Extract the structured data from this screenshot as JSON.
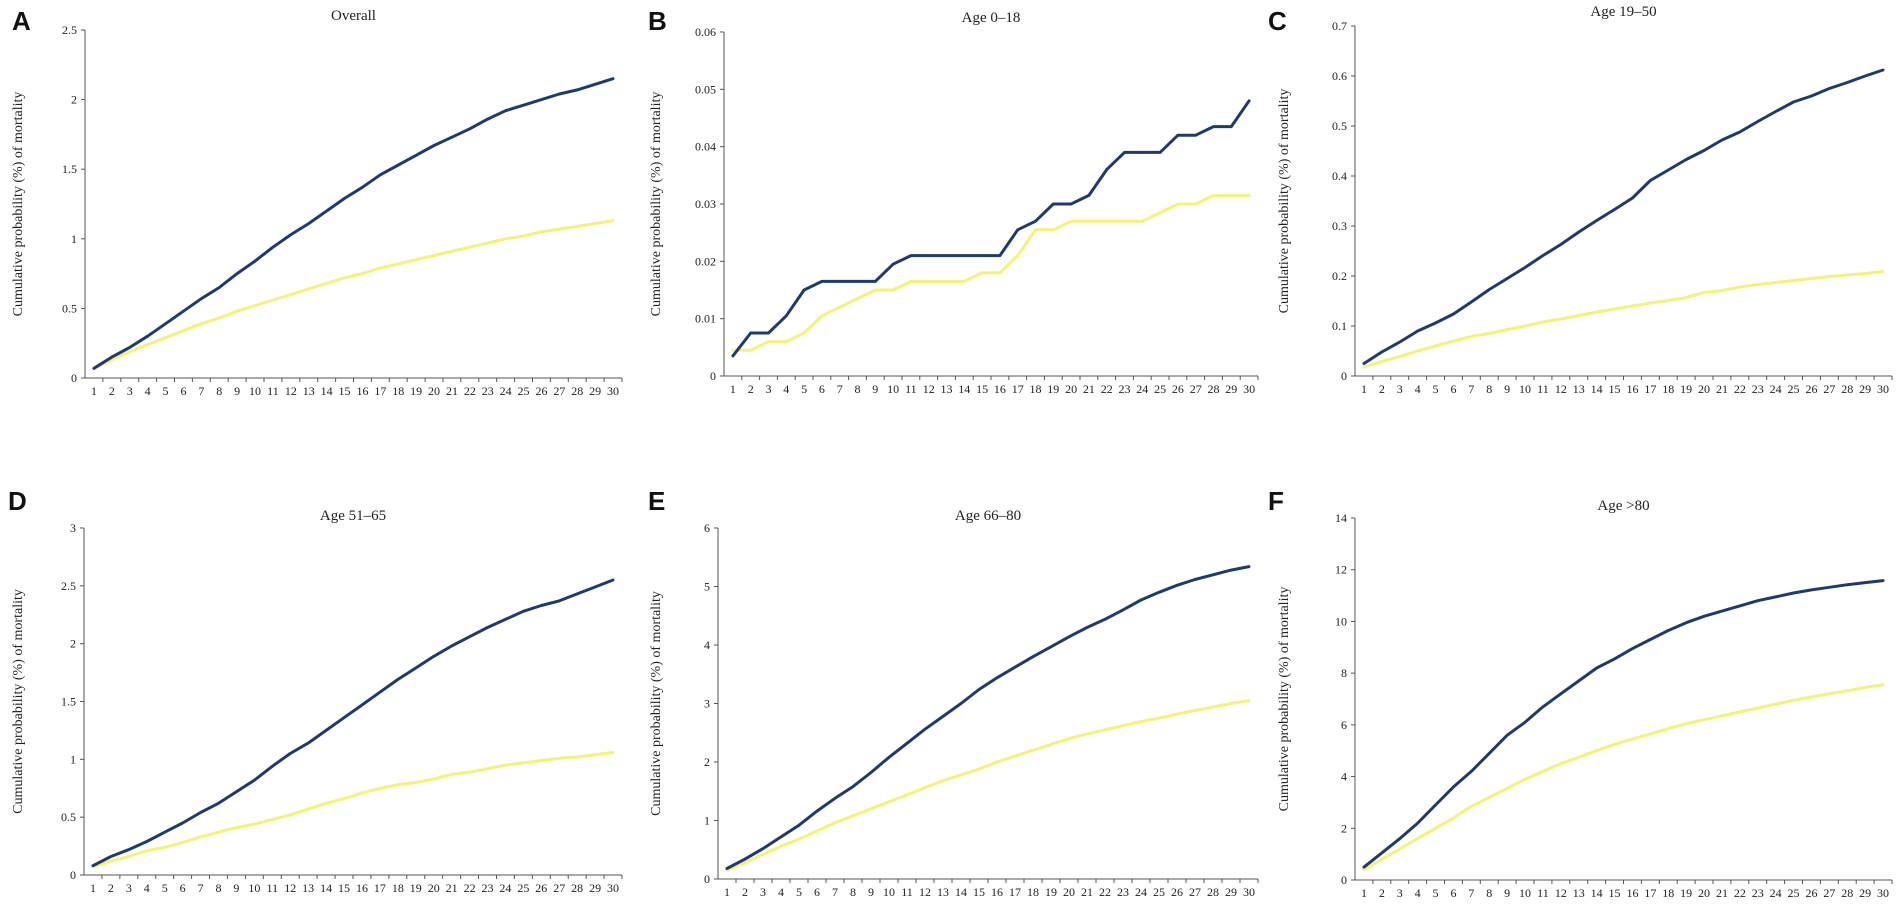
{
  "colors": {
    "series1": "#1f3a6b",
    "series2": "#f3f37a",
    "axis": "#555555"
  },
  "chart_data": [
    {
      "panel": "A",
      "type": "line",
      "title": "Overall",
      "ylabel": "Cumulative probability (%) of mortality",
      "ylim": [
        0,
        2.5
      ],
      "yticks": [
        "0",
        "0.5",
        "1",
        "1.5",
        "2",
        "2.5"
      ],
      "x": [
        1,
        2,
        3,
        4,
        5,
        6,
        7,
        8,
        9,
        10,
        11,
        12,
        13,
        14,
        15,
        16,
        17,
        18,
        19,
        20,
        21,
        22,
        23,
        24,
        25,
        26,
        27,
        28,
        29,
        30
      ],
      "xticks": [
        "1",
        "2",
        "3",
        "4",
        "5",
        "6",
        "7",
        "8",
        "9",
        "10",
        "11",
        "12",
        "13",
        "14",
        "15",
        "16",
        "17",
        "18",
        "19",
        "20",
        "21",
        "22",
        "23",
        "24",
        "25",
        "26",
        "27",
        "28",
        "29",
        "30"
      ],
      "series": [
        {
          "name": "series1",
          "values": [
            0.07,
            0.15,
            0.22,
            0.3,
            0.39,
            0.48,
            0.57,
            0.65,
            0.75,
            0.84,
            0.94,
            1.03,
            1.11,
            1.2,
            1.29,
            1.37,
            1.46,
            1.53,
            1.6,
            1.67,
            1.73,
            1.79,
            1.86,
            1.92,
            1.96,
            2.0,
            2.04,
            2.07,
            2.11,
            2.15
          ]
        },
        {
          "name": "series2",
          "values": [
            0.07,
            0.13,
            0.19,
            0.24,
            0.29,
            0.34,
            0.39,
            0.43,
            0.48,
            0.52,
            0.56,
            0.6,
            0.64,
            0.68,
            0.72,
            0.75,
            0.79,
            0.82,
            0.85,
            0.88,
            0.91,
            0.94,
            0.97,
            1.0,
            1.02,
            1.05,
            1.07,
            1.09,
            1.11,
            1.13
          ]
        }
      ]
    },
    {
      "panel": "B",
      "type": "line",
      "title": "Age 0–18",
      "ylabel": "Cumulative probability (%) of mortality",
      "ylim": [
        0,
        0.06
      ],
      "yticks": [
        "0",
        "0.01",
        "0.02",
        "0.03",
        "0.04",
        "0.05",
        "0.06"
      ],
      "x": [
        1,
        2,
        3,
        4,
        5,
        6,
        7,
        8,
        9,
        10,
        11,
        12,
        13,
        14,
        15,
        16,
        17,
        18,
        19,
        20,
        21,
        22,
        23,
        24,
        25,
        26,
        27,
        28,
        29,
        30
      ],
      "xticks": [
        "1",
        "2",
        "3",
        "4",
        "5",
        "6",
        "7",
        "8",
        "9",
        "10",
        "11",
        "12",
        "13",
        "14",
        "15",
        "16",
        "17",
        "18",
        "19",
        "20",
        "21",
        "22",
        "23",
        "24",
        "25",
        "26",
        "27",
        "28",
        "29",
        "30"
      ],
      "series": [
        {
          "name": "series1",
          "values": [
            0.0035,
            0.0075,
            0.0075,
            0.0105,
            0.015,
            0.0165,
            0.0165,
            0.0165,
            0.0165,
            0.0195,
            0.021,
            0.021,
            0.021,
            0.021,
            0.021,
            0.021,
            0.0255,
            0.027,
            0.03,
            0.03,
            0.0315,
            0.036,
            0.039,
            0.039,
            0.039,
            0.042,
            0.042,
            0.0435,
            0.0435,
            0.048
          ]
        },
        {
          "name": "series2",
          "values": [
            0.0045,
            0.0045,
            0.006,
            0.006,
            0.0075,
            0.0105,
            0.012,
            0.0135,
            0.015,
            0.015,
            0.0165,
            0.0165,
            0.0165,
            0.0165,
            0.018,
            0.018,
            0.021,
            0.0255,
            0.0255,
            0.027,
            0.027,
            0.027,
            0.027,
            0.027,
            0.0285,
            0.03,
            0.03,
            0.0315,
            0.0315,
            0.0315
          ]
        }
      ]
    },
    {
      "panel": "C",
      "type": "line",
      "title": "Age 19–50",
      "ylabel": "Cumulative probability (%) of mortality",
      "ylim": [
        0,
        0.7
      ],
      "yticks": [
        "0",
        "0.1",
        "0.2",
        "0.3",
        "0.4",
        "0.5",
        "0.6",
        "0.7"
      ],
      "x": [
        1,
        2,
        3,
        4,
        5,
        6,
        7,
        8,
        9,
        10,
        11,
        12,
        13,
        14,
        15,
        16,
        17,
        18,
        19,
        20,
        21,
        22,
        23,
        24,
        25,
        26,
        27,
        28,
        29,
        30
      ],
      "xticks": [
        "1",
        "2",
        "3",
        "4",
        "5",
        "6",
        "7",
        "8",
        "9",
        "10",
        "11",
        "12",
        "13",
        "14",
        "15",
        "16",
        "17",
        "18",
        "19",
        "20",
        "21",
        "22",
        "23",
        "24",
        "25",
        "26",
        "27",
        "28",
        "29",
        "30"
      ],
      "series": [
        {
          "name": "series1",
          "values": [
            0.025,
            0.048,
            0.068,
            0.09,
            0.106,
            0.124,
            0.148,
            0.173,
            0.195,
            0.217,
            0.241,
            0.263,
            0.288,
            0.311,
            0.333,
            0.356,
            0.391,
            0.412,
            0.433,
            0.451,
            0.472,
            0.488,
            0.509,
            0.529,
            0.548,
            0.56,
            0.575,
            0.587,
            0.6,
            0.612
          ]
        },
        {
          "name": "series2",
          "values": [
            0.018,
            0.029,
            0.039,
            0.05,
            0.06,
            0.07,
            0.079,
            0.085,
            0.093,
            0.1,
            0.108,
            0.114,
            0.121,
            0.128,
            0.134,
            0.14,
            0.146,
            0.151,
            0.157,
            0.167,
            0.171,
            0.178,
            0.183,
            0.187,
            0.191,
            0.195,
            0.199,
            0.202,
            0.205,
            0.209
          ]
        }
      ]
    },
    {
      "panel": "D",
      "type": "line",
      "title": "Age 51–65",
      "ylabel": "Cumulative probability (%) of mortality",
      "ylim": [
        0,
        3
      ],
      "yticks": [
        "0",
        "0.5",
        "1",
        "1.5",
        "2",
        "2.5",
        "3"
      ],
      "x": [
        1,
        2,
        3,
        4,
        5,
        6,
        7,
        8,
        9,
        10,
        11,
        12,
        13,
        14,
        15,
        16,
        17,
        18,
        19,
        20,
        21,
        22,
        23,
        24,
        25,
        26,
        27,
        28,
        29,
        30
      ],
      "xticks": [
        "1",
        "2",
        "3",
        "4",
        "5",
        "6",
        "7",
        "8",
        "9",
        "10",
        "11",
        "12",
        "13",
        "14",
        "15",
        "16",
        "17",
        "18",
        "19",
        "20",
        "21",
        "22",
        "23",
        "24",
        "25",
        "26",
        "27",
        "28",
        "29",
        "30"
      ],
      "series": [
        {
          "name": "series1",
          "values": [
            0.08,
            0.16,
            0.22,
            0.29,
            0.37,
            0.45,
            0.54,
            0.62,
            0.72,
            0.82,
            0.94,
            1.05,
            1.14,
            1.25,
            1.36,
            1.47,
            1.58,
            1.69,
            1.79,
            1.89,
            1.98,
            2.06,
            2.14,
            2.21,
            2.28,
            2.33,
            2.37,
            2.43,
            2.49,
            2.55
          ]
        },
        {
          "name": "series2",
          "values": [
            0.07,
            0.12,
            0.16,
            0.21,
            0.24,
            0.28,
            0.33,
            0.37,
            0.41,
            0.44,
            0.48,
            0.52,
            0.57,
            0.62,
            0.66,
            0.71,
            0.75,
            0.78,
            0.8,
            0.83,
            0.87,
            0.89,
            0.92,
            0.95,
            0.97,
            0.99,
            1.01,
            1.02,
            1.04,
            1.06
          ]
        }
      ]
    },
    {
      "panel": "E",
      "type": "line",
      "title": "Age 66–80",
      "ylabel": "Cumulative probability (%) of mortality",
      "ylim": [
        0,
        6
      ],
      "yticks": [
        "0",
        "1",
        "2",
        "3",
        "4",
        "5",
        "6"
      ],
      "x": [
        1,
        2,
        3,
        4,
        5,
        6,
        7,
        8,
        9,
        10,
        11,
        12,
        13,
        14,
        15,
        16,
        17,
        18,
        19,
        20,
        21,
        22,
        23,
        24,
        25,
        26,
        27,
        28,
        29,
        30
      ],
      "xticks": [
        "1",
        "2",
        "3",
        "4",
        "5",
        "6",
        "7",
        "8",
        "9",
        "10",
        "11",
        "12",
        "13",
        "14",
        "15",
        "16",
        "17",
        "18",
        "19",
        "20",
        "21",
        "22",
        "23",
        "24",
        "25",
        "26",
        "27",
        "28",
        "29",
        "30"
      ],
      "series": [
        {
          "name": "series1",
          "values": [
            0.18,
            0.34,
            0.52,
            0.72,
            0.92,
            1.16,
            1.38,
            1.58,
            1.82,
            2.08,
            2.32,
            2.56,
            2.78,
            3.0,
            3.24,
            3.44,
            3.62,
            3.8,
            3.97,
            4.14,
            4.3,
            4.44,
            4.6,
            4.77,
            4.9,
            5.02,
            5.12,
            5.2,
            5.28,
            5.34
          ]
        },
        {
          "name": "series2",
          "values": [
            0.15,
            0.28,
            0.42,
            0.56,
            0.68,
            0.82,
            0.96,
            1.08,
            1.2,
            1.32,
            1.44,
            1.56,
            1.68,
            1.78,
            1.88,
            2.0,
            2.1,
            2.2,
            2.3,
            2.4,
            2.48,
            2.55,
            2.62,
            2.69,
            2.75,
            2.82,
            2.88,
            2.94,
            3.0,
            3.05
          ]
        }
      ]
    },
    {
      "panel": "F",
      "type": "line",
      "title": "Age >80",
      "ylabel": "Cumulative probability (%) of mortality",
      "ylim": [
        0,
        14
      ],
      "yticks": [
        "0",
        "2",
        "4",
        "6",
        "8",
        "10",
        "12",
        "14"
      ],
      "x": [
        1,
        2,
        3,
        4,
        5,
        6,
        7,
        8,
        9,
        10,
        11,
        12,
        13,
        14,
        15,
        16,
        17,
        18,
        19,
        20,
        21,
        22,
        23,
        24,
        25,
        26,
        27,
        28,
        29,
        30
      ],
      "xticks": [
        "1",
        "2",
        "3",
        "4",
        "5",
        "6",
        "7",
        "8",
        "9",
        "10",
        "11",
        "12",
        "13",
        "14",
        "15",
        "16",
        "17",
        "18",
        "19",
        "20",
        "21",
        "22",
        "23",
        "24",
        "25",
        "26",
        "27",
        "28",
        "29",
        "30"
      ],
      "series": [
        {
          "name": "series1",
          "values": [
            0.5,
            1.05,
            1.6,
            2.2,
            2.9,
            3.6,
            4.2,
            4.9,
            5.6,
            6.1,
            6.7,
            7.2,
            7.7,
            8.2,
            8.55,
            8.95,
            9.3,
            9.65,
            9.95,
            10.2,
            10.4,
            10.6,
            10.8,
            10.95,
            11.1,
            11.22,
            11.32,
            11.42,
            11.5,
            11.58
          ]
        },
        {
          "name": "series2",
          "values": [
            0.4,
            0.8,
            1.2,
            1.6,
            2.0,
            2.4,
            2.85,
            3.2,
            3.55,
            3.9,
            4.2,
            4.5,
            4.75,
            5.0,
            5.25,
            5.45,
            5.65,
            5.85,
            6.05,
            6.2,
            6.35,
            6.5,
            6.65,
            6.8,
            6.95,
            7.08,
            7.2,
            7.32,
            7.45,
            7.55
          ]
        }
      ]
    }
  ]
}
